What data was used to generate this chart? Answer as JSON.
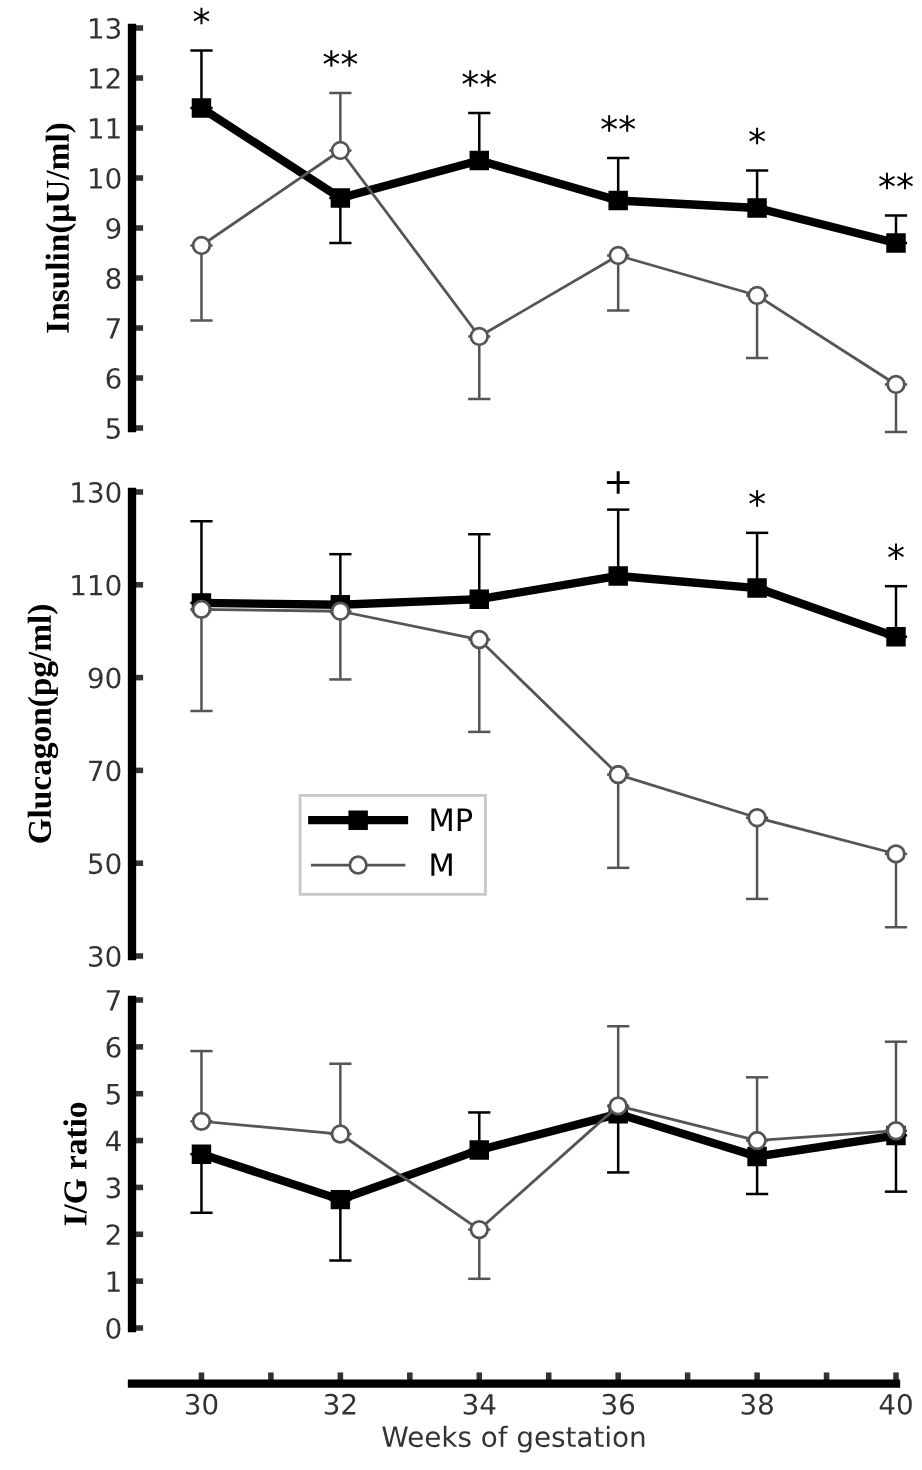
{
  "chart_data": [
    {
      "type": "line",
      "ylabel": "Insulin(μU/ml)",
      "x": [
        30,
        32,
        34,
        36,
        38,
        40
      ],
      "xlim": [
        29,
        40
      ],
      "ylim": [
        5,
        13
      ],
      "yticks": [
        5,
        6,
        7,
        8,
        9,
        10,
        11,
        12,
        13
      ],
      "tick_labels": "y",
      "grid": false,
      "series": [
        {
          "color": "#000000",
          "marker": "square",
          "values": [
            11.4,
            9.6,
            10.35,
            9.55,
            9.4,
            8.7
          ],
          "errors": [
            [
              11.4,
              12.55
            ],
            [
              8.7,
              9.6
            ],
            [
              10.35,
              11.3
            ],
            [
              9.55,
              10.4
            ],
            [
              9.4,
              10.15
            ],
            [
              8.7,
              9.25
            ]
          ]
        },
        {
          "color": "#555555",
          "marker": "circle",
          "values": [
            8.65,
            10.55,
            6.83,
            8.45,
            7.65,
            5.87
          ],
          "errors": [
            [
              7.15,
              8.65
            ],
            [
              10.55,
              11.7
            ],
            [
              5.58,
              6.83
            ],
            [
              7.35,
              8.45
            ],
            [
              6.4,
              7.65
            ],
            [
              4.92,
              5.87
            ]
          ]
        }
      ],
      "annotations": [
        "*",
        "**",
        "**",
        "**",
        "*",
        "**"
      ]
    },
    {
      "type": "line",
      "ylabel": "Glucagon(pg/ml)",
      "x": [
        30,
        32,
        34,
        36,
        38,
        40
      ],
      "xlim": [
        29,
        40
      ],
      "ylim": [
        30,
        130
      ],
      "yticks": [
        30,
        50,
        70,
        90,
        110,
        130
      ],
      "tick_labels": "y",
      "grid": false,
      "legend": "lower left",
      "series": [
        {
          "name": "MP",
          "color": "#000000",
          "marker": "square",
          "values": [
            106.1,
            105.7,
            106.9,
            111.9,
            109.3,
            98.8
          ],
          "errors": [
            [
              106.1,
              123.7
            ],
            [
              105.7,
              116.6
            ],
            [
              106.9,
              120.9
            ],
            [
              111.9,
              126.2
            ],
            [
              109.3,
              121.2
            ],
            [
              98.8,
              109.7
            ]
          ]
        },
        {
          "name": "M",
          "color": "#555555",
          "marker": "circle",
          "values": [
            104.7,
            104.3,
            98.2,
            69.1,
            59.8,
            52.0
          ],
          "errors": [
            [
              82.8,
              104.7
            ],
            [
              89.6,
              104.3
            ],
            [
              78.3,
              98.2
            ],
            [
              49.0,
              69.1
            ],
            [
              42.3,
              59.8
            ],
            [
              36.2,
              52.0
            ]
          ]
        }
      ],
      "annotations": [
        "+",
        "*",
        "*"
      ]
    },
    {
      "type": "line",
      "ylabel": "I/G ratio",
      "xlabel": "Weeks of gestation",
      "x": [
        30,
        32,
        34,
        36,
        38,
        40
      ],
      "xlim": [
        29,
        40
      ],
      "xticks": [
        30,
        32,
        34,
        36,
        38,
        40
      ],
      "ylim": [
        0,
        7
      ],
      "yticks": [
        0,
        1,
        2,
        3,
        4,
        5,
        6,
        7
      ],
      "grid": false,
      "series": [
        {
          "color": "#000000",
          "marker": "square",
          "values": [
            3.71,
            2.74,
            3.8,
            4.57,
            3.66,
            4.11
          ],
          "errors": [
            [
              2.46,
              3.71
            ],
            [
              1.44,
              2.74
            ],
            [
              3.8,
              4.6
            ],
            [
              3.32,
              4.57
            ],
            [
              2.86,
              3.66
            ],
            [
              2.91,
              4.11
            ]
          ]
        },
        {
          "color": "#555555",
          "marker": "circle",
          "values": [
            4.41,
            4.14,
            2.1,
            4.74,
            4.0,
            4.21
          ],
          "errors": [
            [
              4.41,
              5.91
            ],
            [
              4.14,
              5.64
            ],
            [
              1.05,
              2.1
            ],
            [
              4.74,
              6.44
            ],
            [
              4.0,
              5.35
            ],
            [
              4.21,
              6.11
            ]
          ]
        }
      ]
    }
  ]
}
